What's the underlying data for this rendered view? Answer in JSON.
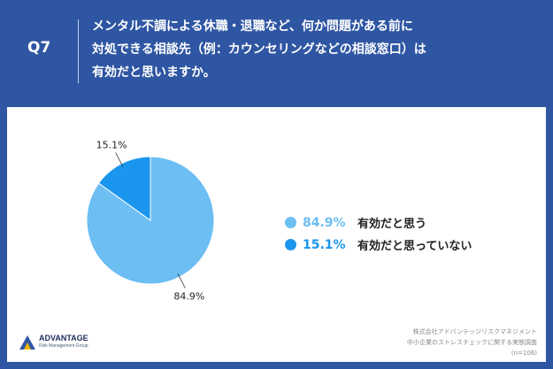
{
  "header": {
    "question_number": "Q7",
    "question_lines": [
      "メンタル不調による休職・退職など、何か問題がある前に",
      "対処できる相談先（例：カウンセリングなどの相談窓口）は",
      "有効だと思いますか。"
    ]
  },
  "chart_data": {
    "type": "pie",
    "slices": [
      {
        "label": "有効だと思う",
        "value": 84.9,
        "value_label": "84.9%",
        "color": "#6cbef3"
      },
      {
        "label": "有効だと思っていない",
        "value": 15.1,
        "value_label": "15.1%",
        "color": "#1a96ee"
      }
    ],
    "start_angle_deg": 0,
    "direction": "clockwise",
    "legend_position": "right"
  },
  "footer": {
    "logo_name": "ADVANTAGE",
    "logo_sub": "Risk Management Group",
    "source_lines": [
      "株式会社アドバンテッジリスクマネジメント",
      "中小企業のストレスチェックに関する実態調査",
      "(n=106)"
    ]
  }
}
